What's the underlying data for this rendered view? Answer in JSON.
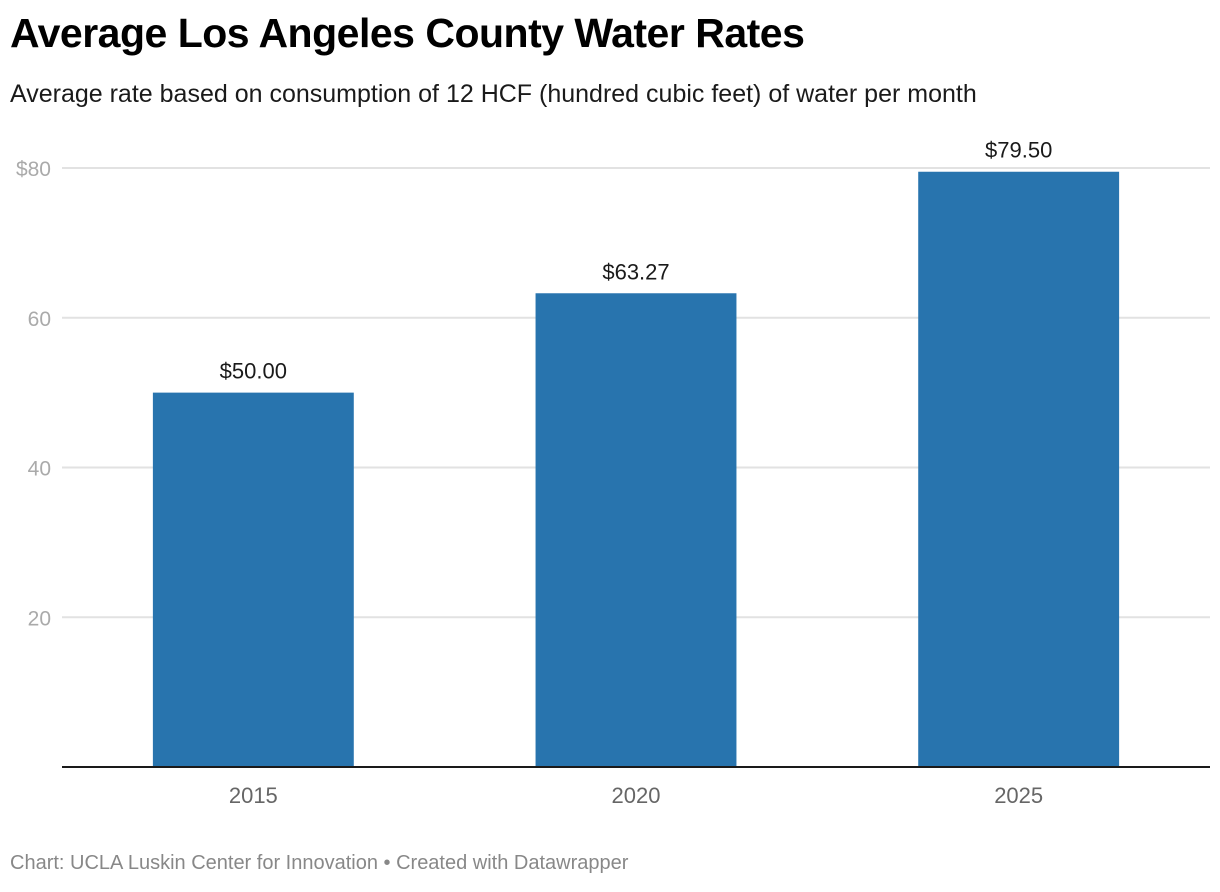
{
  "title": "Average Los Angeles County Water Rates",
  "subtitle": "Average rate based on consumption of 12 HCF (hundred cubic feet) of water per month",
  "footer": "Chart: UCLA Luskin Center for Innovation • Created with Datawrapper",
  "chart_data": {
    "type": "bar",
    "title": "Average Los Angeles County Water Rates",
    "subtitle": "Average rate based on consumption of 12 HCF (hundred cubic feet) of water per month",
    "categories": [
      "2015",
      "2020",
      "2025"
    ],
    "values": [
      50.0,
      63.27,
      79.5
    ],
    "value_labels": [
      "$50.00",
      "$63.27",
      "$79.50"
    ],
    "xlabel": "",
    "ylabel": "",
    "ylim": [
      0,
      80
    ],
    "yticks": [
      20,
      40,
      60,
      80
    ],
    "ytick_labels": [
      "20",
      "40",
      "60",
      "$80"
    ],
    "grid": true,
    "legend": "none",
    "bar_color": "#2874ae",
    "source": "Chart: UCLA Luskin Center for Innovation • Created with Datawrapper"
  }
}
